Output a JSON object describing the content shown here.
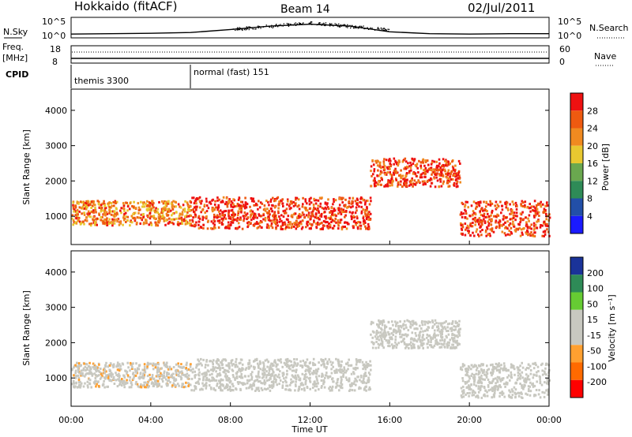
{
  "header": {
    "station": "Hokkaido (fitACF)",
    "beam": "Beam 14",
    "date": "02/Jul/2011"
  },
  "panels": {
    "nsky": {
      "label": "N.Sky",
      "ticks": [
        "10^5",
        "10^0"
      ],
      "right_ticks": [
        "10^5",
        "10^0"
      ],
      "right_label": "N.Search"
    },
    "freq": {
      "label_line1": "Freq.",
      "label_line2": "[MHz]",
      "ticks": [
        "18",
        "8"
      ],
      "right_ticks": [
        "60",
        "0"
      ],
      "right_label": "Nave"
    },
    "cpid": {
      "label": "CPID",
      "segments": [
        {
          "label": "themis 3300",
          "start_hour": 0
        },
        {
          "label": "normal (fast) 151",
          "start_hour": 6
        }
      ]
    }
  },
  "colors": {
    "power": [
      "#1a1aff",
      "#224fa8",
      "#2e8b57",
      "#6aa84f",
      "#e8c830",
      "#f08a20",
      "#ee5a10",
      "#ee1111"
    ],
    "velocity": [
      "#ff0000",
      "#ff6a00",
      "#ffa030",
      "#c8c8c0",
      "#c8c8c0",
      "#66cc33",
      "#2e8b57",
      "#1a3399"
    ]
  },
  "chart_data": [
    {
      "type": "line",
      "name": "N.Sky / N.Search",
      "x": [
        0,
        2,
        4,
        6,
        8,
        10,
        12,
        14,
        16,
        18,
        20,
        22,
        24
      ],
      "series": [
        {
          "name": "N.Sky",
          "values": [
            0.8,
            0.9,
            1.0,
            1.2,
            2.0,
            2.9,
            3.4,
            2.9,
            1.4,
            0.9,
            0.8,
            0.9,
            0.9
          ]
        }
      ],
      "ylabel": "N.Sky",
      "y2label": "N.Search"
    },
    {
      "type": "line",
      "name": "Frequency / Nave",
      "x": [
        0,
        6,
        12,
        18,
        24
      ],
      "series": [
        {
          "name": "Freq.",
          "values": [
            10.5,
            10.5,
            10.5,
            10.5,
            10.5
          ]
        }
      ],
      "ylabel": "Freq. [MHz]",
      "y2label": "Nave"
    },
    {
      "type": "heatmap",
      "title": "Power",
      "xlabel": "Time UT",
      "ylabel": "Slant Range [km]",
      "x_ticks": [
        "00:00",
        "04:00",
        "08:00",
        "12:00",
        "16:00",
        "20:00",
        "00:00"
      ],
      "xlim": [
        0,
        24
      ],
      "ylim": [
        200,
        4600
      ],
      "y_ticks": [
        1000,
        2000,
        3000,
        4000
      ],
      "colorbar": {
        "label": "Power [dB]",
        "ticks": [
          4,
          8,
          12,
          16,
          20,
          24,
          28
        ],
        "range": [
          0,
          30
        ]
      }
    },
    {
      "type": "heatmap",
      "title": "Velocity",
      "xlabel": "Time UT",
      "ylabel": "Slant Range [km]",
      "x_ticks": [
        "00:00",
        "04:00",
        "08:00",
        "12:00",
        "16:00",
        "20:00",
        "00:00"
      ],
      "xlim": [
        0,
        24
      ],
      "ylim": [
        200,
        4600
      ],
      "y_ticks": [
        1000,
        2000,
        3000,
        4000
      ],
      "colorbar": {
        "label": "Velocity [m s⁻¹]",
        "ticks": [
          200,
          100,
          50,
          15,
          -15,
          -50,
          -100,
          -200
        ]
      }
    }
  ],
  "echo_bands": [
    {
      "start_hour": 0.0,
      "end_hour": 6.0,
      "range_lo": 700,
      "range_hi": 1400,
      "power": 22,
      "velocity": -5
    },
    {
      "start_hour": 6.0,
      "end_hour": 15.0,
      "range_lo": 600,
      "range_hi": 1500,
      "power": 27,
      "velocity": 5
    },
    {
      "start_hour": 15.0,
      "end_hour": 19.5,
      "range_lo": 1800,
      "range_hi": 2600,
      "power": 26,
      "velocity": 8
    },
    {
      "start_hour": 19.5,
      "end_hour": 24.0,
      "range_lo": 400,
      "range_hi": 1400,
      "power": 26,
      "velocity": 3
    }
  ],
  "time_axis_label": "Time UT"
}
